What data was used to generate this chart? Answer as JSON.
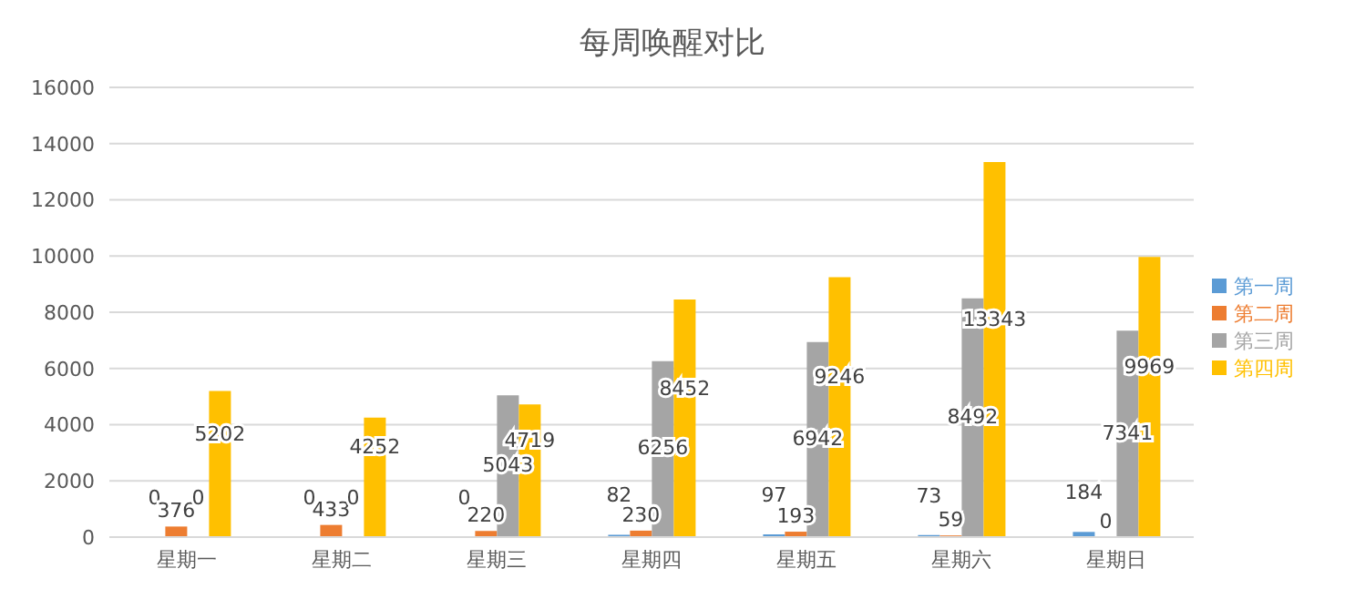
{
  "chart_data": {
    "type": "bar",
    "title": "每周唤醒对比",
    "categories": [
      "星期一",
      "星期二",
      "星期三",
      "星期四",
      "星期五",
      "星期六",
      "星期日"
    ],
    "series": [
      {
        "name": "第一周",
        "color": "#5b9bd5",
        "values": [
          0,
          0,
          0,
          82,
          97,
          73,
          184
        ]
      },
      {
        "name": "第二周",
        "color": "#ed7d31",
        "values": [
          376,
          433,
          220,
          230,
          193,
          59,
          0
        ]
      },
      {
        "name": "第三周",
        "color": "#a5a5a5",
        "values": [
          0,
          0,
          5043,
          6256,
          6942,
          8492,
          7341
        ]
      },
      {
        "name": "第四周",
        "color": "#ffc000",
        "values": [
          5202,
          4252,
          4719,
          8452,
          9246,
          13343,
          9969
        ]
      }
    ],
    "ylim": [
      0,
      16000
    ],
    "yticks": [
      0,
      2000,
      4000,
      6000,
      8000,
      10000,
      12000,
      14000,
      16000
    ],
    "grid": "y",
    "legend": "right",
    "data_labels": true
  }
}
